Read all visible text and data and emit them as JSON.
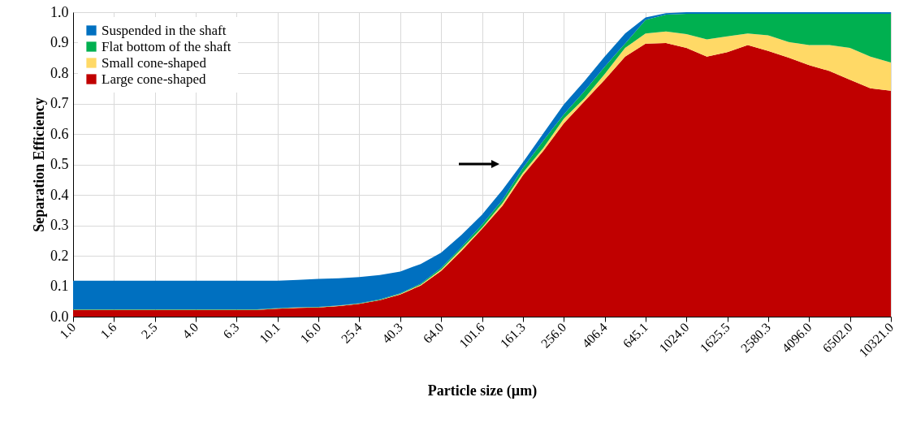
{
  "chart_data": {
    "type": "area",
    "stacked": true,
    "xlabel": "Particle size (µm)",
    "ylabel": "Separation Efficiency",
    "categories": [
      "1.0",
      null,
      "1.6",
      null,
      "2.5",
      null,
      "4.0",
      null,
      "6.3",
      null,
      "10.1",
      null,
      "16.0",
      null,
      "25.4",
      null,
      "40.3",
      null,
      "64.0",
      null,
      "101.6",
      null,
      "161.3",
      null,
      "256.0",
      null,
      "406.4",
      null,
      "645.1",
      null,
      "1024.0",
      null,
      "1625.5",
      null,
      "2580.3",
      null,
      "4096.0",
      null,
      "6502.0",
      null,
      "10321.0"
    ],
    "series": [
      {
        "name": "Large cone-shaped",
        "color": "#c00000",
        "values": [
          0.022,
          0.022,
          0.022,
          0.022,
          0.022,
          0.022,
          0.022,
          0.022,
          0.022,
          0.022,
          0.026,
          0.029,
          0.03,
          0.035,
          0.042,
          0.054,
          0.073,
          0.102,
          0.15,
          0.216,
          0.288,
          0.364,
          0.464,
          0.545,
          0.635,
          0.707,
          0.778,
          0.854,
          0.897,
          0.899,
          0.883,
          0.854,
          0.869,
          0.892,
          0.873,
          0.851,
          0.826,
          0.807,
          0.778,
          0.75,
          0.742
        ]
      },
      {
        "name": "Small cone-shaped",
        "color": "#ffd966",
        "values": [
          0.001,
          0.001,
          0.001,
          0.001,
          0.001,
          0.001,
          0.001,
          0.001,
          0.001,
          0.001,
          0.001,
          0.001,
          0.001,
          0.001,
          0.001,
          0.001,
          0.002,
          0.003,
          0.005,
          0.007,
          0.004,
          0.009,
          0.009,
          0.009,
          0.015,
          0.009,
          0.019,
          0.029,
          0.033,
          0.038,
          0.045,
          0.057,
          0.052,
          0.038,
          0.051,
          0.051,
          0.066,
          0.085,
          0.105,
          0.104,
          0.093
        ]
      },
      {
        "name": "Flat bottom of the shaft",
        "color": "#00b050",
        "values": [
          0.001,
          0.001,
          0.001,
          0.001,
          0.001,
          0.001,
          0.001,
          0.001,
          0.001,
          0.001,
          0.001,
          0.001,
          0.001,
          0.001,
          0.001,
          0.002,
          0.002,
          0.003,
          0.005,
          0.006,
          0.01,
          0.01,
          0.015,
          0.024,
          0.014,
          0.024,
          0.024,
          0.014,
          0.045,
          0.055,
          0.067,
          0.084,
          0.074,
          0.065,
          0.071,
          0.093,
          0.103,
          0.103,
          0.112,
          0.141,
          0.16
        ]
      },
      {
        "name": "Suspended in the shaft",
        "color": "#0070c0",
        "values": [
          0.094,
          0.094,
          0.094,
          0.094,
          0.094,
          0.094,
          0.094,
          0.094,
          0.094,
          0.094,
          0.09,
          0.09,
          0.092,
          0.089,
          0.086,
          0.08,
          0.071,
          0.065,
          0.05,
          0.04,
          0.033,
          0.033,
          0.019,
          0.024,
          0.033,
          0.033,
          0.033,
          0.033,
          0.008,
          0.005,
          0.005,
          0.005,
          0.005,
          0.005,
          0.005,
          0.005,
          0.005,
          0.005,
          0.005,
          0.005,
          0.005
        ]
      }
    ],
    "ylim": [
      0,
      1
    ],
    "yticks": [
      {
        "value": 0,
        "label": "0.0"
      },
      0.1,
      0.2,
      0.3,
      0.4,
      0.5,
      0.6,
      0.7,
      0.8,
      0.9,
      {
        "value": 1,
        "label": "1.0"
      }
    ],
    "grid": true,
    "legend": "top left"
  }
}
